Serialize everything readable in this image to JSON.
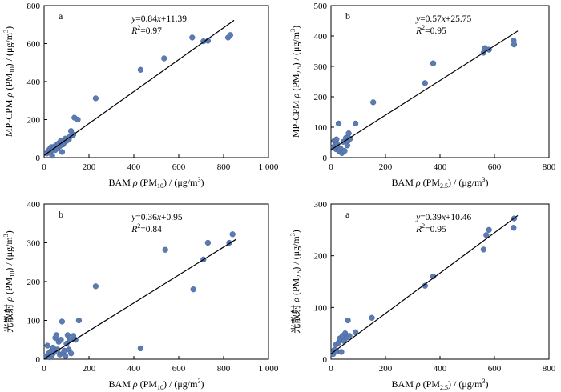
{
  "chart_data": [
    {
      "type": "scatter",
      "panel_label": "a",
      "equation": {
        "y": "y",
        "rest": "=0.84",
        "x": "x",
        "tail": "+11.39"
      },
      "r2": {
        "R": "R",
        "sup": "2",
        "value": "=0.97"
      },
      "xlabel": {
        "pre": "BAM ",
        "rho": "ρ",
        "mid": " (PM",
        "sub": "10",
        "post": ") / (μg/m",
        "sup": "3",
        "end": ")"
      },
      "ylabel": {
        "pre": "MP-CPM  ",
        "rho": "ρ",
        "mid": " (PM",
        "sub": "10",
        "post": ") / (μg/m",
        "sup": "3",
        "end": ")"
      },
      "xlim": [
        0,
        1000
      ],
      "ylim": [
        0,
        800
      ],
      "xticks": [
        "0",
        "200",
        "400",
        "600",
        "800",
        "1 000"
      ],
      "yticks": [
        "0",
        "200",
        "400",
        "600",
        "800"
      ],
      "fit": {
        "slope": 0.84,
        "intercept": 11.39
      },
      "points": [
        [
          12,
          22
        ],
        [
          18,
          35
        ],
        [
          25,
          45
        ],
        [
          28,
          30
        ],
        [
          32,
          55
        ],
        [
          36,
          10
        ],
        [
          40,
          42
        ],
        [
          45,
          58
        ],
        [
          50,
          40
        ],
        [
          55,
          65
        ],
        [
          60,
          50
        ],
        [
          65,
          75
        ],
        [
          70,
          60
        ],
        [
          75,
          90
        ],
        [
          80,
          30
        ],
        [
          85,
          70
        ],
        [
          90,
          80
        ],
        [
          95,
          100
        ],
        [
          100,
          88
        ],
        [
          110,
          95
        ],
        [
          115,
          110
        ],
        [
          120,
          140
        ],
        [
          130,
          120
        ],
        [
          135,
          210
        ],
        [
          150,
          200
        ],
        [
          230,
          312
        ],
        [
          430,
          462
        ],
        [
          535,
          522
        ],
        [
          660,
          632
        ],
        [
          710,
          612
        ],
        [
          730,
          615
        ],
        [
          820,
          632
        ],
        [
          830,
          645
        ]
      ]
    },
    {
      "type": "scatter",
      "panel_label": "b",
      "equation": {
        "y": "y",
        "rest": "=0.57",
        "x": "x",
        "tail": "+25.75"
      },
      "r2": {
        "R": "R",
        "sup": "2",
        "value": "=0.95"
      },
      "xlabel": {
        "pre": "BAM ",
        "rho": "ρ",
        "mid": " (PM",
        "sub": "2.5",
        "post": ") / (μg/m",
        "sup": "3",
        "end": ")"
      },
      "ylabel": {
        "pre": "MP-CPM  ",
        "rho": "ρ",
        "mid": " (PM",
        "sub": "2.5",
        "post": ") / (μg/m",
        "sup": "3",
        "end": ")"
      },
      "xlim": [
        0,
        800
      ],
      "ylim": [
        0,
        500
      ],
      "xticks": [
        "0",
        "200",
        "400",
        "600",
        "800"
      ],
      "yticks": [
        "0",
        "100",
        "200",
        "300",
        "400",
        "500"
      ],
      "fit": {
        "slope": 0.57,
        "intercept": 25.75
      },
      "points": [
        [
          10,
          35
        ],
        [
          12,
          55
        ],
        [
          15,
          40
        ],
        [
          18,
          28
        ],
        [
          20,
          60
        ],
        [
          22,
          45
        ],
        [
          25,
          35
        ],
        [
          28,
          112
        ],
        [
          30,
          20
        ],
        [
          35,
          30
        ],
        [
          40,
          15
        ],
        [
          45,
          52
        ],
        [
          50,
          22
        ],
        [
          55,
          65
        ],
        [
          60,
          40
        ],
        [
          62,
          55
        ],
        [
          65,
          80
        ],
        [
          70,
          62
        ],
        [
          90,
          112
        ],
        [
          155,
          182
        ],
        [
          345,
          245
        ],
        [
          375,
          310
        ],
        [
          560,
          345
        ],
        [
          565,
          360
        ],
        [
          580,
          355
        ],
        [
          670,
          385
        ],
        [
          672,
          372
        ]
      ]
    },
    {
      "type": "scatter",
      "panel_label": "b",
      "equation": {
        "y": "y",
        "rest": "=0.36",
        "x": "x",
        "tail": "+0.95"
      },
      "r2": {
        "R": "R",
        "sup": "2",
        "value": "=0.84"
      },
      "xlabel": {
        "pre": "BAM ",
        "rho": "ρ",
        "mid": " (PM",
        "sub": "10",
        "post": ") / (μg/m",
        "sup": "3",
        "end": ")"
      },
      "ylabel": {
        "pre": "光散射 ",
        "rho": "ρ",
        "mid": " (PM",
        "sub": "10",
        "post": ") / (μg/m",
        "sup": "3",
        "end": ")"
      },
      "xlim": [
        0,
        1000
      ],
      "ylim": [
        0,
        400
      ],
      "xticks": [
        "0",
        "200",
        "400",
        "600",
        "800",
        "1 000"
      ],
      "yticks": [
        "0",
        "100",
        "200",
        "300",
        "400"
      ],
      "fit": {
        "slope": 0.36,
        "intercept": 0.95
      },
      "points": [
        [
          10,
          8
        ],
        [
          15,
          35
        ],
        [
          20,
          15
        ],
        [
          25,
          5
        ],
        [
          30,
          20
        ],
        [
          35,
          10
        ],
        [
          40,
          30
        ],
        [
          45,
          18
        ],
        [
          50,
          55
        ],
        [
          55,
          62
        ],
        [
          60,
          25
        ],
        [
          65,
          45
        ],
        [
          70,
          12
        ],
        [
          75,
          50
        ],
        [
          80,
          97
        ],
        [
          85,
          15
        ],
        [
          90,
          22
        ],
        [
          95,
          8
        ],
        [
          100,
          40
        ],
        [
          105,
          62
        ],
        [
          110,
          25
        ],
        [
          115,
          50
        ],
        [
          120,
          15
        ],
        [
          130,
          60
        ],
        [
          140,
          50
        ],
        [
          155,
          100
        ],
        [
          230,
          188
        ],
        [
          430,
          28
        ],
        [
          540,
          282
        ],
        [
          665,
          180
        ],
        [
          710,
          257
        ],
        [
          730,
          300
        ],
        [
          825,
          300
        ],
        [
          840,
          322
        ]
      ]
    },
    {
      "type": "scatter",
      "panel_label": "a",
      "equation": {
        "y": "y",
        "rest": "=0.39",
        "x": "x",
        "tail": "+10.46"
      },
      "r2": {
        "R": "R",
        "sup": "2",
        "value": "=0.95"
      },
      "xlabel": {
        "pre": "BAM ",
        "rho": "ρ",
        "mid": " (PM",
        "sub": "2.5",
        "post": ") / (μg/m",
        "sup": "3",
        "end": ")"
      },
      "ylabel": {
        "pre": "光散射 ",
        "rho": "ρ",
        "mid": " (PM",
        "sub": "2.5",
        "post": ") / (μg/m",
        "sup": "3",
        "end": ")"
      },
      "xlim": [
        0,
        800
      ],
      "ylim": [
        0,
        300
      ],
      "xticks": [
        "0",
        "200",
        "400",
        "600",
        "800"
      ],
      "yticks": [
        "0",
        "100",
        "200",
        "300"
      ],
      "fit": {
        "slope": 0.39,
        "intercept": 10.46
      },
      "points": [
        [
          8,
          10
        ],
        [
          12,
          18
        ],
        [
          18,
          28
        ],
        [
          22,
          15
        ],
        [
          28,
          32
        ],
        [
          32,
          40
        ],
        [
          38,
          14
        ],
        [
          42,
          45
        ],
        [
          48,
          35
        ],
        [
          52,
          50
        ],
        [
          58,
          42
        ],
        [
          62,
          75
        ],
        [
          68,
          45
        ],
        [
          90,
          52
        ],
        [
          150,
          80
        ],
        [
          345,
          142
        ],
        [
          375,
          160
        ],
        [
          560,
          212
        ],
        [
          570,
          240
        ],
        [
          580,
          250
        ],
        [
          670,
          254
        ],
        [
          672,
          272
        ]
      ]
    }
  ]
}
